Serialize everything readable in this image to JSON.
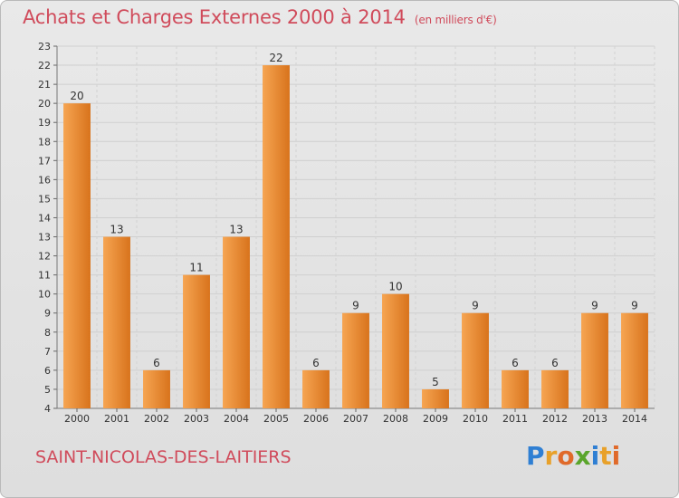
{
  "title": "Achats et Charges Externes 2000 à 2014",
  "unit": "(en milliers d'€)",
  "commune": "SAINT-NICOLAS-DES-LAITIERS",
  "brand": {
    "letters": [
      "P",
      "r",
      "o",
      "x",
      "i",
      "t",
      "i"
    ],
    "icon": "proxiti-logo"
  },
  "colors": {
    "title": "#d04b5b",
    "bar_light": "#f6a552",
    "bar_dark": "#d8731c"
  },
  "chart_data": {
    "type": "bar",
    "title": "Achats et Charges Externes 2000 à 2014",
    "subtitle": "(en milliers d'€)",
    "categories": [
      "2000",
      "2001",
      "2002",
      "2003",
      "2004",
      "2005",
      "2006",
      "2007",
      "2008",
      "2009",
      "2010",
      "2011",
      "2012",
      "2013",
      "2014"
    ],
    "values": [
      20,
      13,
      6,
      11,
      13,
      22,
      6,
      9,
      10,
      5,
      9,
      6,
      6,
      9,
      9
    ],
    "ylim": [
      4,
      23
    ],
    "yticks": [
      4,
      5,
      6,
      7,
      8,
      9,
      10,
      11,
      12,
      13,
      14,
      15,
      16,
      17,
      18,
      19,
      20,
      21,
      22,
      23
    ],
    "grid": true,
    "legend": "none"
  }
}
